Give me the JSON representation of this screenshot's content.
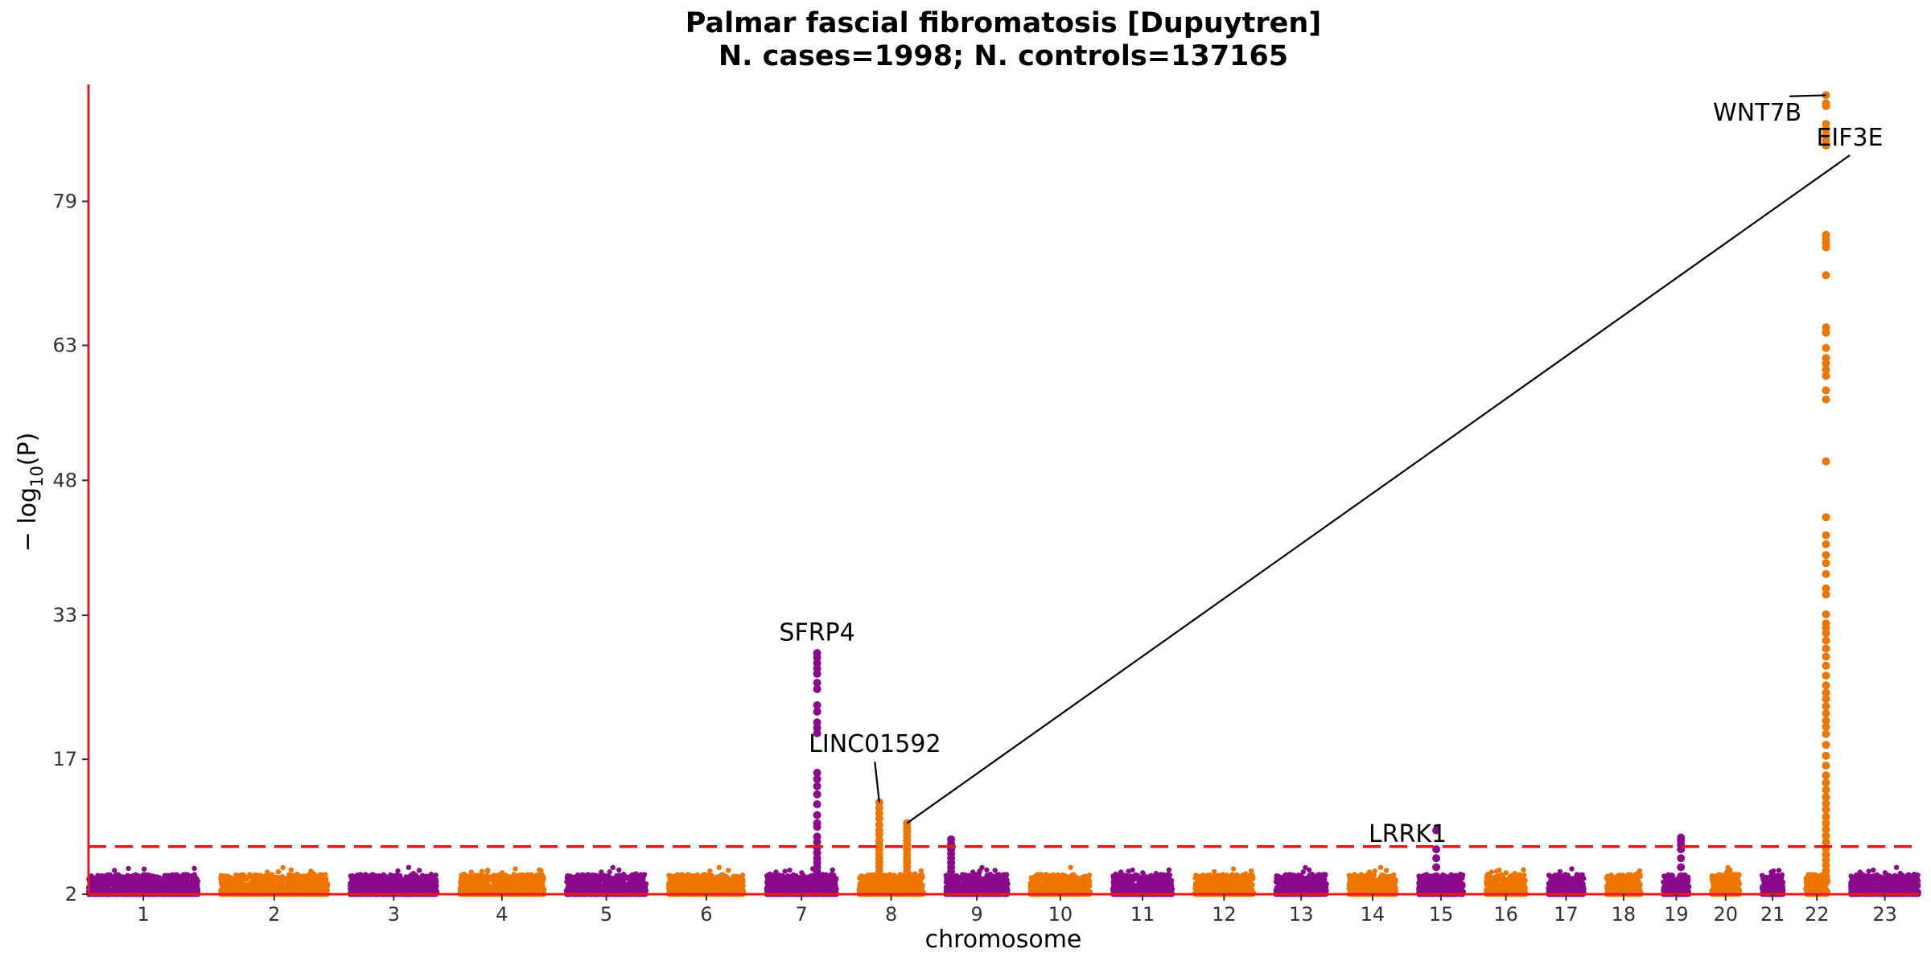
{
  "chart_data": {
    "type": "scatter",
    "subtype": "manhattan",
    "title": "Palmar fascial fibromatosis [Dupuytren]",
    "subtitle": "N. cases=1998; N. controls=137165",
    "xlabel": "chromosome",
    "ylabel": "− log10(P)",
    "ylabel_main": "− log",
    "ylabel_sub": "10",
    "ylabel_tail": "(P)",
    "yticks": [
      2,
      17,
      33,
      48,
      63,
      79
    ],
    "ylim": [
      2,
      92
    ],
    "significance_threshold": 7.3,
    "grid": false,
    "legend": "none",
    "colors": {
      "odd": "#8B0A8B",
      "even": "#EE7600",
      "threshold": "#E8191C",
      "axis": "#E8191C",
      "label_line": "#000000"
    },
    "chromosomes": [
      {
        "chr": "1",
        "length": 249
      },
      {
        "chr": "2",
        "length": 243
      },
      {
        "chr": "3",
        "length": 198
      },
      {
        "chr": "4",
        "length": 191
      },
      {
        "chr": "5",
        "length": 181
      },
      {
        "chr": "6",
        "length": 171
      },
      {
        "chr": "7",
        "length": 159
      },
      {
        "chr": "8",
        "length": 146
      },
      {
        "chr": "9",
        "length": 141
      },
      {
        "chr": "10",
        "length": 136
      },
      {
        "chr": "11",
        "length": 135
      },
      {
        "chr": "12",
        "length": 133
      },
      {
        "chr": "13",
        "length": 115
      },
      {
        "chr": "14",
        "length": 107
      },
      {
        "chr": "15",
        "length": 102
      },
      {
        "chr": "16",
        "length": 90
      },
      {
        "chr": "17",
        "length": 81
      },
      {
        "chr": "18",
        "length": 78
      },
      {
        "chr": "19",
        "length": 59
      },
      {
        "chr": "20",
        "length": 63
      },
      {
        "chr": "21",
        "length": 48
      },
      {
        "chr": "22",
        "length": 51
      },
      {
        "chr": "23",
        "length": 155
      }
    ],
    "peaks": [
      {
        "chr": "7",
        "pos": 115,
        "values": [
          28.8,
          28.3,
          27.7,
          27.1,
          26.5,
          25.5,
          24.8,
          23.0,
          22.3,
          21.1,
          20.5,
          19.9,
          15.5,
          14.8,
          14.0,
          13.1,
          12.0,
          10.8,
          9.9,
          9.5,
          8.4,
          7.8,
          7.2,
          6.6,
          6.0,
          5.5,
          5.0,
          4.5,
          4.0,
          3.5
        ]
      },
      {
        "chr": "8",
        "pos": 46,
        "values": [
          12.2,
          11.6,
          11.0,
          10.4,
          9.7,
          9.1,
          8.6,
          8.0,
          7.5,
          7.0,
          6.5,
          6.0,
          5.5,
          5.0,
          4.5,
          4.0,
          3.5
        ]
      },
      {
        "chr": "8",
        "pos": 109,
        "values": [
          9.9,
          9.4,
          9.0,
          8.5,
          8.0,
          7.5,
          7.0,
          6.5,
          6.0,
          5.5,
          5.0,
          4.5,
          4.0,
          3.5
        ]
      },
      {
        "chr": "9",
        "pos": 12,
        "values": [
          8.1,
          7.6,
          7.0,
          6.5,
          6.0,
          5.5,
          5.0,
          4.5,
          4.0,
          3.5
        ]
      },
      {
        "chr": "15",
        "pos": 40,
        "values": [
          9.1,
          7.0,
          6.0,
          5.0,
          4.0
        ]
      },
      {
        "chr": "19",
        "pos": 40,
        "values": [
          8.3,
          8.0,
          7.5,
          7.0,
          6.0,
          5.0,
          4.0
        ]
      },
      {
        "chr": "22",
        "pos": 46,
        "values": [
          90.8,
          89.9,
          89.6,
          87.6,
          87.0,
          86.4,
          85.8,
          85.2,
          75.3,
          74.8,
          74.4,
          73.9,
          70.8,
          65.0,
          64.4,
          62.7,
          61.6,
          61.0,
          60.3,
          59.6,
          58.0,
          57.0,
          50.1,
          43.9,
          41.9,
          40.9,
          39.7,
          38.8,
          37.6,
          36.0,
          35.3,
          33.1,
          32.1,
          31.6,
          31.0,
          30.2,
          29.3,
          28.4,
          27.4,
          26.3,
          25.2,
          24.4,
          23.7,
          22.9,
          22.1,
          21.3,
          20.6,
          19.8,
          18.6,
          17.4,
          16.3,
          15.2,
          14.4,
          13.6,
          12.8,
          12.1,
          11.4,
          10.6,
          9.9,
          9.2,
          8.5,
          7.8,
          7.1,
          6.4,
          5.8,
          5.2,
          4.6,
          4.0,
          3.4
        ]
      }
    ],
    "annotations": [
      {
        "label": "WNT7B",
        "point": {
          "chr": "22",
          "pos": 46,
          "y": 90.8
        },
        "text": {
          "chr": "22",
          "pos": -110,
          "y": 88.0
        }
      },
      {
        "label": "EIF3E",
        "point": {
          "chr": "8",
          "pos": 109,
          "y": 9.9
        },
        "text": {
          "chr": "22",
          "pos": 100,
          "y": 85.2
        }
      },
      {
        "label": "SFRP4",
        "point": {
          "chr": "7",
          "pos": 115,
          "y": 28.8
        },
        "text": {
          "chr": "7",
          "pos": 115,
          "y": 30.2
        }
      },
      {
        "label": "LINC01592",
        "point": {
          "chr": "8",
          "pos": 46,
          "y": 12.2
        },
        "text": {
          "chr": "8",
          "pos": 36,
          "y": 17.8
        }
      },
      {
        "label": "LRRK1",
        "point": {
          "chr": "15",
          "pos": 40,
          "y": 9.1
        },
        "text": {
          "chr": "15",
          "pos": -25,
          "y": 7.8
        }
      }
    ]
  }
}
